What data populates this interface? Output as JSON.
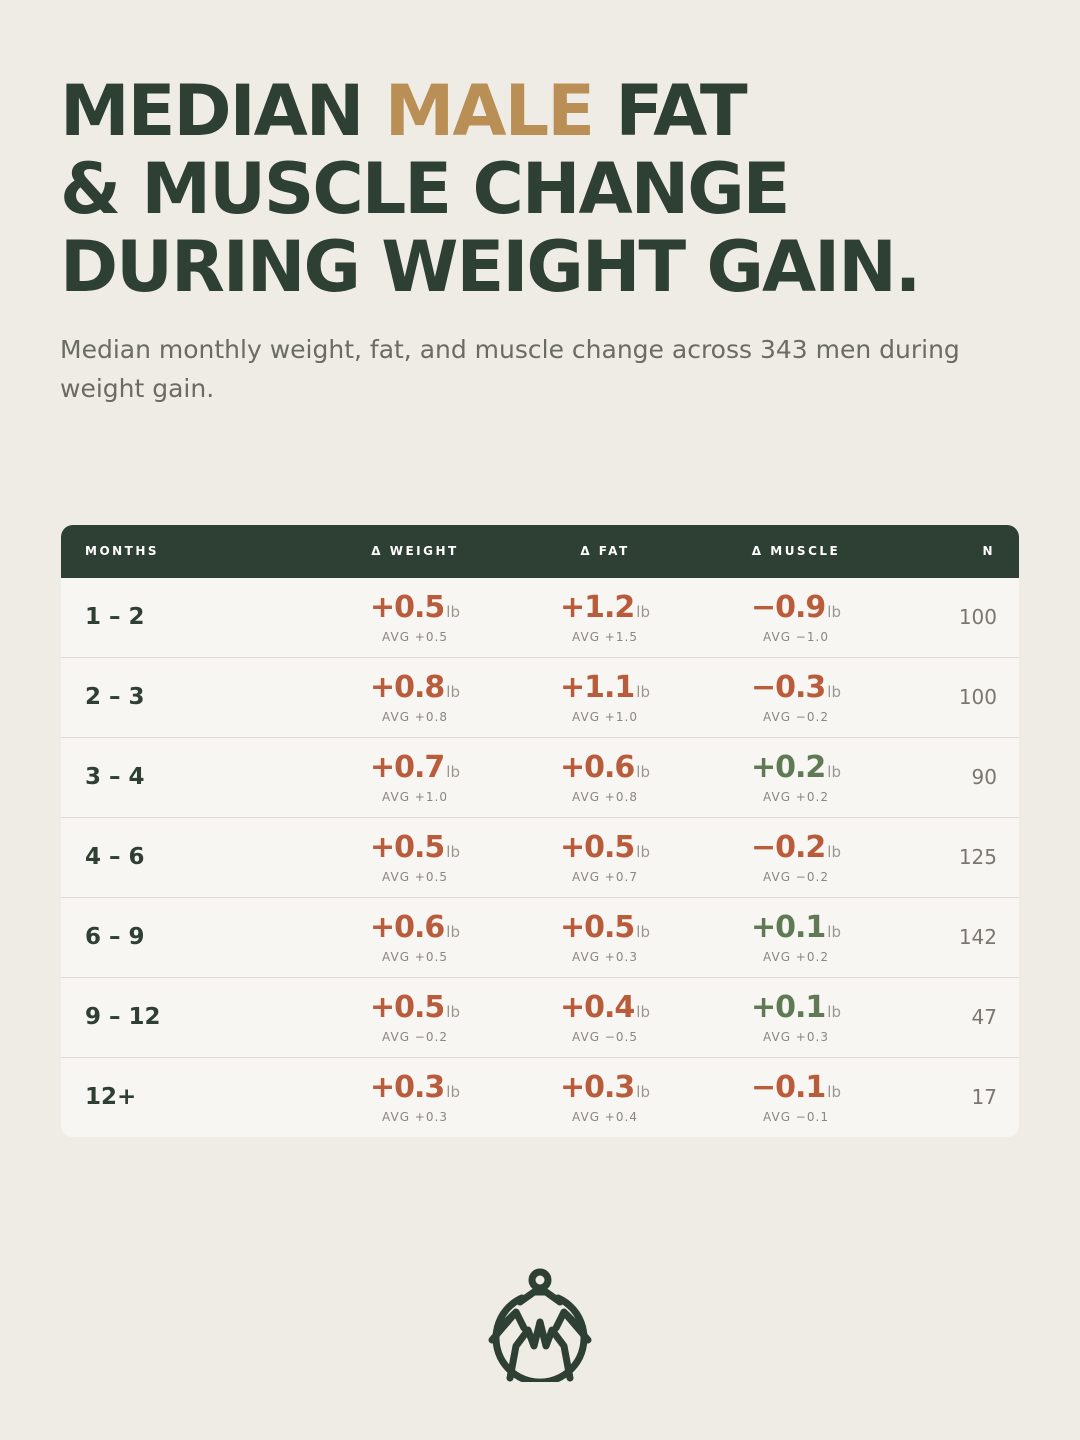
{
  "title": {
    "line1_pre": "MEDIAN ",
    "line1_accent": "MALE",
    "line1_post": " FAT",
    "line2": "& MUSCLE CHANGE",
    "line3": "DURING WEIGHT GAIN."
  },
  "subtitle": "Median monthly weight, fat, and muscle change across 343 men during weight gain.",
  "table": {
    "headers": {
      "months": "MONTHS",
      "weight": "Δ WEIGHT",
      "fat": "Δ FAT",
      "muscle": "Δ MUSCLE",
      "n": "N"
    },
    "unit": "lb",
    "rows": [
      {
        "months": "1 – 2",
        "weight": {
          "value": "+0.5",
          "avg": "AVG +0.5"
        },
        "fat": {
          "value": "+1.2",
          "avg": "AVG +1.5"
        },
        "muscle": {
          "value": "−0.9",
          "avg": "AVG −1.0"
        },
        "n": "100"
      },
      {
        "months": "2 – 3",
        "weight": {
          "value": "+0.8",
          "avg": "AVG +0.8"
        },
        "fat": {
          "value": "+1.1",
          "avg": "AVG +1.0"
        },
        "muscle": {
          "value": "−0.3",
          "avg": "AVG −0.2"
        },
        "n": "100"
      },
      {
        "months": "3 – 4",
        "weight": {
          "value": "+0.7",
          "avg": "AVG +1.0"
        },
        "fat": {
          "value": "+0.6",
          "avg": "AVG +0.8"
        },
        "muscle": {
          "value": "+0.2",
          "avg": "AVG +0.2"
        },
        "n": "90"
      },
      {
        "months": "4 – 6",
        "weight": {
          "value": "+0.5",
          "avg": "AVG +0.5"
        },
        "fat": {
          "value": "+0.5",
          "avg": "AVG +0.7"
        },
        "muscle": {
          "value": "−0.2",
          "avg": "AVG −0.2"
        },
        "n": "125"
      },
      {
        "months": "6 – 9",
        "weight": {
          "value": "+0.6",
          "avg": "AVG +0.5"
        },
        "fat": {
          "value": "+0.5",
          "avg": "AVG +0.3"
        },
        "muscle": {
          "value": "+0.1",
          "avg": "AVG +0.2"
        },
        "n": "142"
      },
      {
        "months": "9 – 12",
        "weight": {
          "value": "+0.5",
          "avg": "AVG −0.2"
        },
        "fat": {
          "value": "+0.4",
          "avg": "AVG −0.5"
        },
        "muscle": {
          "value": "+0.1",
          "avg": "AVG +0.3"
        },
        "n": "47"
      },
      {
        "months": "12+",
        "weight": {
          "value": "+0.3",
          "avg": "AVG +0.3"
        },
        "fat": {
          "value": "+0.3",
          "avg": "AVG +0.4"
        },
        "muscle": {
          "value": "−0.1",
          "avg": "AVG −0.1"
        },
        "n": "17"
      }
    ]
  },
  "colors": {
    "background": "#efece6",
    "dark_green": "#2e3f33",
    "accent_gold": "#b98f55",
    "negative_red": "#b85c3c",
    "positive_green": "#5f7a55"
  },
  "logo": {
    "icon": "mountain-figure-logo-icon"
  }
}
